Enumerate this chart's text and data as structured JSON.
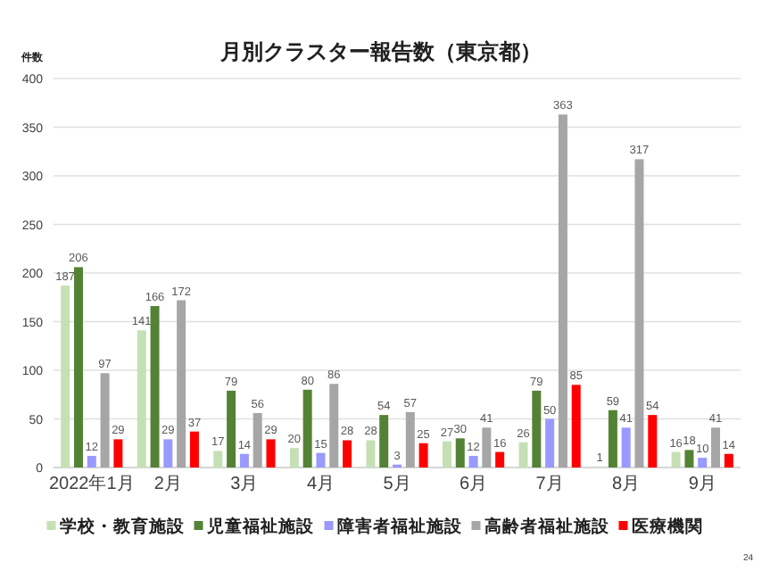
{
  "chart_data": {
    "type": "bar",
    "title": "月別クラスター報告数（東京都）",
    "ylabel": "件数",
    "categories": [
      "2022年1月",
      "2月",
      "3月",
      "4月",
      "5月",
      "6月",
      "7月",
      "8月",
      "9月"
    ],
    "series": [
      {
        "name": "学校・教育施設",
        "color": "#c5e0b4",
        "values": [
          187,
          141,
          17,
          20,
          28,
          27,
          26,
          1,
          16
        ]
      },
      {
        "name": "児童福祉施設",
        "color": "#548235",
        "values": [
          206,
          166,
          79,
          80,
          54,
          30,
          79,
          59,
          18
        ]
      },
      {
        "name": "障害者福祉施設",
        "color": "#9999ff",
        "values": [
          12,
          29,
          14,
          15,
          3,
          12,
          50,
          41,
          10
        ]
      },
      {
        "name": "高齢者福祉施設",
        "color": "#a6a6a6",
        "values": [
          97,
          172,
          56,
          86,
          57,
          41,
          363,
          317,
          41
        ]
      },
      {
        "name": "医療機関",
        "color": "#ff0000",
        "values": [
          29,
          37,
          29,
          28,
          25,
          16,
          85,
          54,
          14
        ]
      }
    ],
    "ylim": [
      0,
      400
    ],
    "yticks": [
      0,
      50,
      100,
      150,
      200,
      250,
      300,
      350,
      400
    ],
    "grid": "y",
    "legend": "bottom",
    "data_labels": true,
    "annotations": [
      "24"
    ]
  }
}
